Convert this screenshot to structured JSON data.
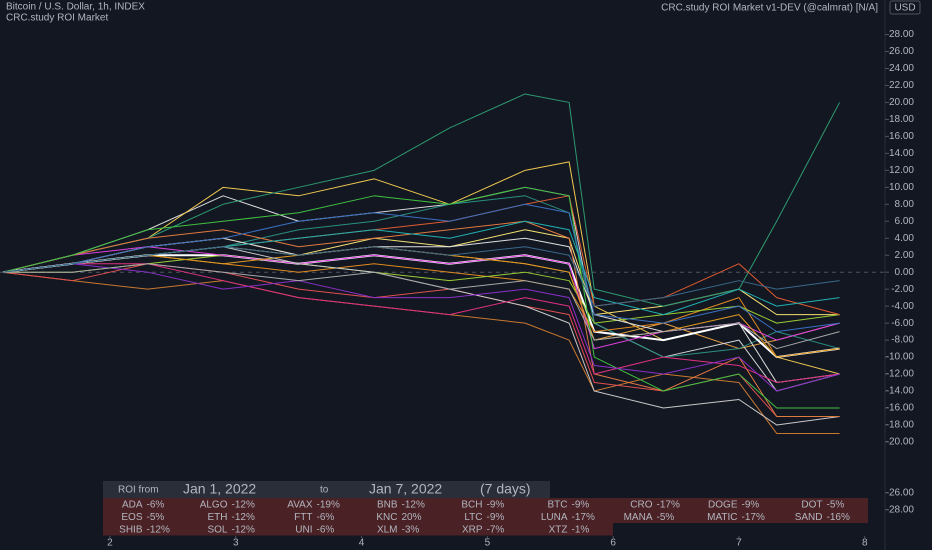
{
  "header": {
    "symbol": "Bitcoin / U.S. Dollar, 1h, INDEX",
    "study": "CRC.study ROI Market",
    "indicator": "CRC.study ROI Market v1-DEV (@calmrat) [N/A]",
    "currency": "USD"
  },
  "roi_bar": {
    "from_label": "ROI from",
    "from": "Jan 1, 2022",
    "to_label": "to",
    "to": "Jan 7, 2022",
    "span": "(7 days)"
  },
  "chart_data": {
    "type": "line",
    "x": [
      1.15,
      1.7,
      2.3,
      2.9,
      3.5,
      4.1,
      4.7,
      5.3,
      5.65,
      5.85,
      6.4,
      7.0,
      7.3,
      7.8
    ],
    "xlim": [
      1.126,
      8.161
    ],
    "xticks": [
      2,
      3,
      4,
      5,
      6,
      7,
      8
    ],
    "ylim": [
      -31.2,
      32.07
    ],
    "yticks": [
      {
        "value": 28,
        "label": "28.00"
      },
      {
        "value": 26,
        "label": "26.00"
      },
      {
        "value": 24,
        "label": "24.00"
      },
      {
        "value": 22,
        "label": "22.00"
      },
      {
        "value": 20,
        "label": "20.00"
      },
      {
        "value": 18,
        "label": "18.00"
      },
      {
        "value": 16,
        "label": "16.00"
      },
      {
        "value": 14,
        "label": "14.00"
      },
      {
        "value": 12,
        "label": "12.00"
      },
      {
        "value": 10,
        "label": "10.00"
      },
      {
        "value": 8,
        "label": "8.00"
      },
      {
        "value": 6,
        "label": "6.00"
      },
      {
        "value": 4,
        "label": "4.00"
      },
      {
        "value": 2,
        "label": "2.00"
      },
      {
        "value": 0,
        "label": "0.00"
      },
      {
        "value": -2,
        "label": "-2.00"
      },
      {
        "value": -4,
        "label": "-4.00"
      },
      {
        "value": -6,
        "label": "-6.00"
      },
      {
        "value": -8,
        "label": "-8.00"
      },
      {
        "value": -10,
        "label": "-10.00"
      },
      {
        "value": -12,
        "label": "-12.00"
      },
      {
        "value": -14,
        "label": "-14.00"
      },
      {
        "value": -16,
        "label": "-16.00"
      },
      {
        "value": -18,
        "label": "-18.00"
      },
      {
        "value": -20,
        "label": "-20.00"
      },
      {
        "value": -26,
        "label": "-26.00"
      },
      {
        "value": -28,
        "label": "-28.00"
      }
    ],
    "zero_line": 0,
    "series": [
      {
        "name": "ADA",
        "color": "#e8a040",
        "roi": -6,
        "roi_label": "-6%",
        "values": [
          0,
          1,
          3,
          4,
          2,
          3,
          2,
          1,
          0,
          -8,
          -6,
          -9,
          -8,
          -6
        ]
      },
      {
        "name": "ALGO",
        "color": "#d8d8d8",
        "roi": -12,
        "roi_label": "-12%",
        "values": [
          0,
          2,
          5,
          9,
          6,
          7,
          8,
          10,
          9,
          -6,
          -10,
          -8,
          -14,
          -12
        ]
      },
      {
        "name": "AVAX",
        "color": "#c87830",
        "roi": -19,
        "roi_label": "-19%",
        "values": [
          0,
          -1,
          -2,
          -1,
          -3,
          -4,
          -5,
          -6,
          -8,
          -14,
          -12,
          -13,
          -19,
          -19
        ]
      },
      {
        "name": "BNB",
        "color": "#f0c850",
        "roi": -12,
        "roi_label": "-12%",
        "values": [
          0,
          2,
          4,
          10,
          9,
          11,
          8,
          12,
          13,
          -4,
          -8,
          -6,
          -10,
          -12
        ]
      },
      {
        "name": "BCH",
        "color": "#2a8f80",
        "roi": -9,
        "roi_label": "-9%",
        "values": [
          0,
          1,
          2,
          3,
          5,
          6,
          8,
          9,
          7,
          -6,
          -10,
          -9,
          -7,
          -9
        ]
      },
      {
        "name": "BTC",
        "color": "#ffffff",
        "roi": -9,
        "roi_label": "-9%",
        "values": [
          0,
          1,
          2,
          2,
          1,
          2,
          1,
          2,
          1,
          -7,
          -8,
          -6,
          -10,
          -9
        ]
      },
      {
        "name": "CRO",
        "color": "#e05050",
        "roi": -17,
        "roi_label": "-17%",
        "values": [
          0,
          -1,
          1,
          0,
          -2,
          -3,
          -2,
          -4,
          -5,
          -13,
          -14,
          -12,
          -17,
          -17
        ]
      },
      {
        "name": "DOGE",
        "color": "#e08a20",
        "roi": -9,
        "roi_label": "-9%",
        "values": [
          0,
          1,
          2,
          1,
          0,
          1,
          0,
          -1,
          -2,
          -7,
          -6,
          -3,
          -10,
          -9
        ]
      },
      {
        "name": "DOT",
        "color": "#f5e070",
        "roi": -5,
        "roi_label": "-5%",
        "values": [
          0,
          1,
          2,
          3,
          2,
          4,
          3,
          5,
          4,
          -5,
          -4,
          -2,
          -5,
          -5
        ]
      },
      {
        "name": "EOS",
        "color": "#9acd32",
        "roi": -5,
        "roi_label": "-5%",
        "values": [
          0,
          0,
          1,
          2,
          1,
          0,
          -1,
          0,
          -1,
          -6,
          -5,
          -4,
          -6,
          -5
        ]
      },
      {
        "name": "ETH",
        "color": "#e0e0e0",
        "roi": -12,
        "roi_label": "-12%",
        "values": [
          0,
          1,
          3,
          4,
          2,
          3,
          3,
          4,
          3,
          -5,
          -7,
          -6,
          -13,
          -12
        ]
      },
      {
        "name": "FTT",
        "color": "#e040e0",
        "roi": -6,
        "roi_label": "-6%",
        "values": [
          0,
          2,
          3,
          2,
          1,
          2,
          1,
          2,
          1,
          -9,
          -7,
          -6,
          -8,
          -6
        ]
      },
      {
        "name": "KNC",
        "color": "#2e9a70",
        "roi": 20,
        "roi_label": "20%",
        "values": [
          0,
          2,
          4,
          8,
          10,
          12,
          17,
          21,
          20,
          -2,
          -4,
          -2,
          6,
          20
        ]
      },
      {
        "name": "LTC",
        "color": "#e09a20",
        "roi": -9,
        "roi_label": "-9%",
        "values": [
          0,
          1,
          2,
          1,
          2,
          3,
          2,
          1,
          0,
          -8,
          -7,
          -5,
          -10,
          -9
        ]
      },
      {
        "name": "LUNA",
        "color": "#c8c8c8",
        "roi": -17,
        "roi_label": "-17%",
        "values": [
          0,
          1,
          2,
          3,
          1,
          0,
          -2,
          -4,
          -6,
          -14,
          -16,
          -15,
          -18,
          -17
        ]
      },
      {
        "name": "MANA",
        "color": "#e05a30",
        "roi": -5,
        "roi_label": "-5%",
        "values": [
          0,
          1,
          2,
          3,
          4,
          5,
          6,
          8,
          9,
          -4,
          -3,
          1,
          -3,
          -5
        ]
      },
      {
        "name": "MATIC",
        "color": "#e07840",
        "roi": -17,
        "roi_label": "-17%",
        "values": [
          0,
          2,
          4,
          5,
          3,
          4,
          5,
          6,
          4,
          -12,
          -14,
          -10,
          -17,
          -17
        ]
      },
      {
        "name": "SAND",
        "color": "#40c040",
        "roi": -16,
        "roi_label": "-16%",
        "values": [
          0,
          2,
          5,
          6,
          7,
          9,
          8,
          10,
          9,
          -10,
          -14,
          -12,
          -16,
          -16
        ]
      },
      {
        "name": "SHIB",
        "color": "#e03080",
        "roi": -12,
        "roi_label": "-12%",
        "values": [
          0,
          1,
          1,
          -1,
          -3,
          -4,
          -5,
          -3,
          -4,
          -12,
          -10,
          -11,
          -13,
          -12
        ]
      },
      {
        "name": "SOL",
        "color": "#8a30c8",
        "roi": -12,
        "roi_label": "-12%",
        "values": [
          0,
          1,
          0,
          -2,
          -1,
          -3,
          -3,
          -2,
          -3,
          -11,
          -12,
          -10,
          -14,
          -12
        ]
      },
      {
        "name": "UNI",
        "color": "#3a70c0",
        "roi": -6,
        "roi_label": "-6%",
        "values": [
          0,
          1,
          3,
          4,
          6,
          7,
          6,
          8,
          7,
          -5,
          -6,
          -4,
          -7,
          -6
        ]
      },
      {
        "name": "XLM",
        "color": "#20b0b0",
        "roi": -3,
        "roi_label": "-3%",
        "values": [
          0,
          1,
          2,
          3,
          4,
          5,
          4,
          6,
          5,
          -3,
          -5,
          -2,
          -4,
          -3
        ]
      },
      {
        "name": "XRP",
        "color": "#a8a8a8",
        "roi": -7,
        "roi_label": "-7%",
        "values": [
          0,
          0,
          1,
          0,
          -1,
          0,
          -2,
          -1,
          -2,
          -8,
          -7,
          -6,
          -9,
          -7
        ]
      },
      {
        "name": "XTZ",
        "color": "#3a6a8a",
        "roi": -1,
        "roi_label": "-1%",
        "values": [
          0,
          1,
          2,
          3,
          2,
          3,
          2,
          3,
          2,
          -4,
          -3,
          -1,
          -2,
          -1
        ]
      }
    ]
  }
}
